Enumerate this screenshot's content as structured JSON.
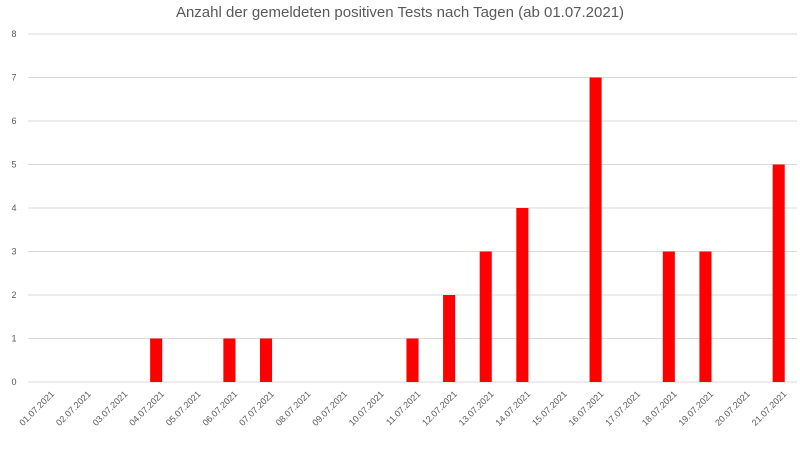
{
  "chart_data": {
    "type": "bar",
    "title": "Anzahl der gemeldeten positiven Tests nach Tagen (ab 01.07.2021)",
    "xlabel": "",
    "ylabel": "",
    "ylim": [
      0,
      8
    ],
    "yticks": [
      0,
      1,
      2,
      3,
      4,
      5,
      6,
      7,
      8
    ],
    "grid": true,
    "legend": "none",
    "bar_color": "#ff0000",
    "categories": [
      "01.07.2021",
      "02.07.2021",
      "03.07.2021",
      "04.07.2021",
      "05.07.2021",
      "06.07.2021",
      "07.07.2021",
      "08.07.2021",
      "09.07.2021",
      "10.07.2021",
      "11.07.2021",
      "12.07.2021",
      "13.07.2021",
      "14.07.2021",
      "15.07.2021",
      "16.07.2021",
      "17.07.2021",
      "18.07.2021",
      "19.07.2021",
      "20.07.2021",
      "21.07.2021"
    ],
    "values": [
      0,
      0,
      0,
      1,
      0,
      1,
      1,
      0,
      0,
      0,
      1,
      2,
      3,
      4,
      0,
      7,
      0,
      3,
      3,
      0,
      5
    ]
  }
}
